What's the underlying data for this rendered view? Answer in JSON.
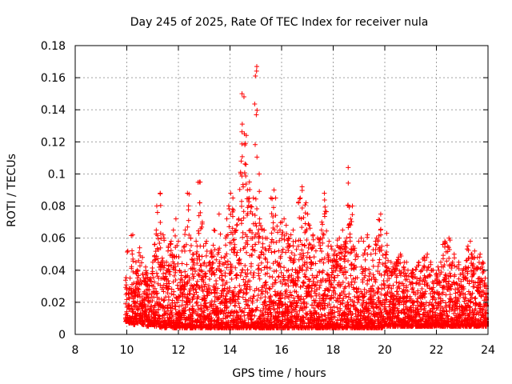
{
  "chart_data": {
    "type": "scatter",
    "title": "Day 245 of 2025, Rate Of TEC Index for receiver nula",
    "xlabel": "GPS time / hours",
    "ylabel": "ROTI / TECUs",
    "xlim": [
      8,
      24
    ],
    "ylim": [
      0,
      0.18
    ],
    "x_ticks": [
      "8",
      "10",
      "12",
      "14",
      "16",
      "18",
      "20",
      "22",
      "24"
    ],
    "y_ticks": [
      "0",
      "0.02",
      "0.04",
      "0.06",
      "0.08",
      "0.1",
      "0.12",
      "0.14",
      "0.16",
      "0.18"
    ],
    "grid": true,
    "marker": "+",
    "color": "#ff0000",
    "series": [
      {
        "name": "",
        "x": [
          10.0,
          10.1,
          10.2,
          10.3,
          10.4,
          10.5,
          10.6,
          10.7,
          10.8,
          10.9,
          11.0,
          11.1,
          11.2,
          11.3,
          11.4,
          11.5,
          11.6,
          11.7,
          11.8,
          11.9,
          12.0,
          12.1,
          12.2,
          12.3,
          12.4,
          12.5,
          12.6,
          12.7,
          12.8,
          12.9,
          13.0,
          13.1,
          13.2,
          13.3,
          13.4,
          13.5,
          13.6,
          13.7,
          13.8,
          13.9,
          14.0,
          14.1,
          14.2,
          14.3,
          14.4,
          14.5,
          14.6,
          14.7,
          14.8,
          14.9,
          15.0,
          15.1,
          15.2,
          15.3,
          15.4,
          15.5,
          15.6,
          15.7,
          15.8,
          15.9,
          16.0,
          16.1,
          16.2,
          16.3,
          16.4,
          16.5,
          16.6,
          16.7,
          16.8,
          16.9,
          17.0,
          17.1,
          17.2,
          17.3,
          17.4,
          17.5,
          17.6,
          17.7,
          17.8,
          17.9,
          18.0,
          18.1,
          18.2,
          18.3,
          18.4,
          18.5,
          18.6,
          18.7,
          18.8,
          18.9,
          19.0,
          19.1,
          19.2,
          19.3,
          19.4,
          19.5,
          19.6,
          19.7,
          19.8,
          19.9,
          20.0,
          20.1,
          20.2,
          20.3,
          20.4,
          20.5,
          20.6,
          20.7,
          20.8,
          20.9,
          21.0,
          21.1,
          21.2,
          21.3,
          21.4,
          21.5,
          21.6,
          21.7,
          21.8,
          21.9,
          22.0,
          22.1,
          22.2,
          22.3,
          22.4,
          22.5,
          22.6,
          22.7,
          22.8,
          22.9,
          23.0,
          23.1,
          23.2,
          23.3,
          23.4,
          23.5,
          23.6,
          23.7,
          23.8,
          23.9,
          24.0
        ],
        "low": [
          0.008,
          0.007,
          0.007,
          0.006,
          0.007,
          0.008,
          0.006,
          0.007,
          0.005,
          0.006,
          0.006,
          0.005,
          0.006,
          0.004,
          0.005,
          0.004,
          0.006,
          0.005,
          0.004,
          0.004,
          0.005,
          0.004,
          0.004,
          0.004,
          0.005,
          0.004,
          0.004,
          0.004,
          0.004,
          0.004,
          0.005,
          0.004,
          0.004,
          0.004,
          0.004,
          0.004,
          0.004,
          0.004,
          0.004,
          0.004,
          0.004,
          0.004,
          0.004,
          0.004,
          0.004,
          0.004,
          0.004,
          0.004,
          0.004,
          0.004,
          0.004,
          0.004,
          0.004,
          0.004,
          0.004,
          0.004,
          0.004,
          0.004,
          0.004,
          0.004,
          0.004,
          0.004,
          0.004,
          0.004,
          0.004,
          0.004,
          0.004,
          0.004,
          0.004,
          0.004,
          0.004,
          0.004,
          0.004,
          0.004,
          0.004,
          0.004,
          0.004,
          0.004,
          0.004,
          0.004,
          0.004,
          0.004,
          0.004,
          0.004,
          0.004,
          0.004,
          0.004,
          0.004,
          0.004,
          0.004,
          0.004,
          0.004,
          0.004,
          0.004,
          0.004,
          0.004,
          0.004,
          0.004,
          0.004,
          0.004,
          0.005,
          0.005,
          0.005,
          0.005,
          0.005,
          0.005,
          0.005,
          0.005,
          0.005,
          0.005,
          0.005,
          0.005,
          0.005,
          0.005,
          0.005,
          0.005,
          0.005,
          0.005,
          0.005,
          0.005,
          0.005,
          0.005,
          0.005,
          0.005,
          0.005,
          0.005,
          0.005,
          0.005,
          0.005,
          0.005,
          0.005,
          0.005,
          0.005,
          0.005,
          0.005,
          0.005,
          0.005,
          0.005,
          0.005,
          0.005,
          0.005
        ],
        "high": [
          0.052,
          0.035,
          0.062,
          0.032,
          0.045,
          0.054,
          0.048,
          0.042,
          0.038,
          0.035,
          0.045,
          0.065,
          0.08,
          0.088,
          0.062,
          0.045,
          0.055,
          0.058,
          0.065,
          0.072,
          0.058,
          0.052,
          0.055,
          0.065,
          0.088,
          0.06,
          0.05,
          0.058,
          0.095,
          0.07,
          0.055,
          0.058,
          0.045,
          0.052,
          0.065,
          0.05,
          0.075,
          0.048,
          0.06,
          0.072,
          0.088,
          0.085,
          0.065,
          0.072,
          0.108,
          0.15,
          0.125,
          0.09,
          0.095,
          0.085,
          0.167,
          0.1,
          0.072,
          0.065,
          0.06,
          0.055,
          0.085,
          0.09,
          0.085,
          0.065,
          0.07,
          0.072,
          0.068,
          0.06,
          0.065,
          0.058,
          0.055,
          0.085,
          0.092,
          0.082,
          0.075,
          0.068,
          0.062,
          0.055,
          0.06,
          0.065,
          0.07,
          0.088,
          0.058,
          0.055,
          0.05,
          0.052,
          0.06,
          0.055,
          0.065,
          0.06,
          0.104,
          0.08,
          0.055,
          0.05,
          0.058,
          0.06,
          0.058,
          0.062,
          0.055,
          0.05,
          0.058,
          0.06,
          0.075,
          0.055,
          0.05,
          0.063,
          0.045,
          0.042,
          0.045,
          0.048,
          0.05,
          0.042,
          0.045,
          0.04,
          0.038,
          0.04,
          0.042,
          0.045,
          0.04,
          0.048,
          0.05,
          0.042,
          0.045,
          0.04,
          0.038,
          0.042,
          0.045,
          0.058,
          0.055,
          0.06,
          0.045,
          0.05,
          0.042,
          0.045,
          0.04,
          0.042,
          0.055,
          0.058,
          0.05,
          0.052,
          0.048,
          0.05,
          0.045,
          0.035,
          0.03
        ]
      }
    ]
  }
}
